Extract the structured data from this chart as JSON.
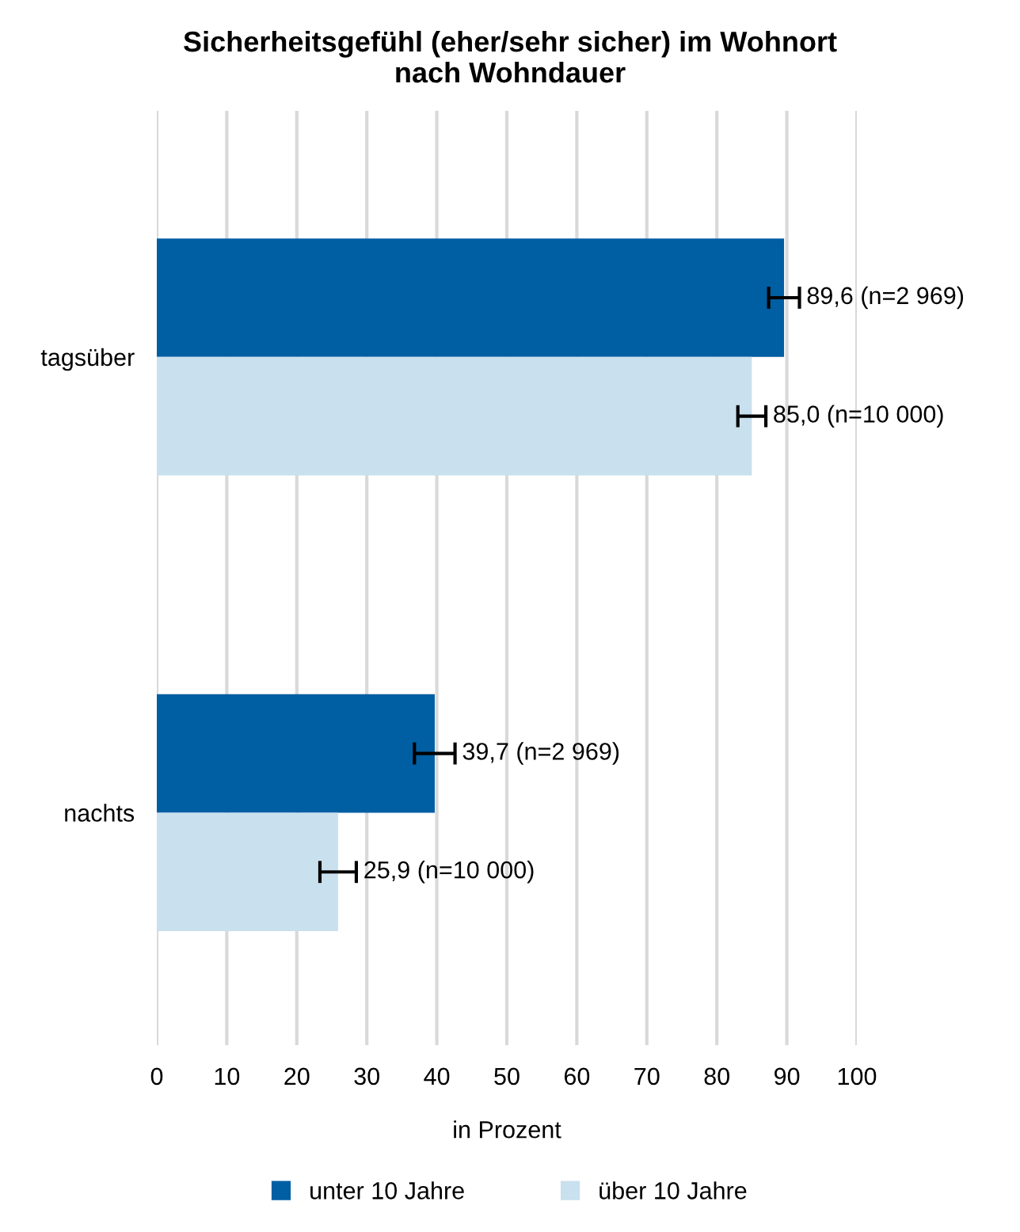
{
  "chart_data": {
    "type": "bar",
    "orientation": "horizontal",
    "title": "Sicherheitsgefühl (eher/sehr sicher) im Wohnort\nnach Wohndauer",
    "xlabel": "in Prozent",
    "categories": [
      "tagsüber",
      "nachts"
    ],
    "series": [
      {
        "name": "unter 10 Jahre",
        "color": "#005ea3",
        "values": [
          89.6,
          39.7
        ],
        "errors": [
          2.2,
          2.9
        ],
        "value_labels": [
          "89,6 (n=2 969)",
          "39,7 (n=2 969)"
        ]
      },
      {
        "name": "über 10 Jahre",
        "color": "#c9e0ee",
        "values": [
          85.0,
          25.9
        ],
        "errors": [
          2.0,
          2.6
        ],
        "value_labels": [
          "85,0 (n=10 000)",
          "25,9 (n=10 000)"
        ]
      }
    ],
    "xlim": [
      0,
      100
    ],
    "xticks": [
      0,
      10,
      20,
      30,
      40,
      50,
      60,
      70,
      80,
      90,
      100
    ],
    "grid": "x",
    "legend": "bottom"
  }
}
